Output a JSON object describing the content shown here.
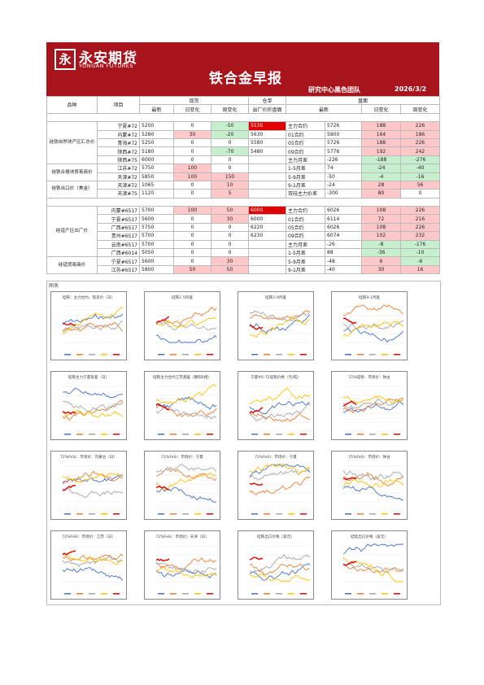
{
  "brand": {
    "logo_glyph": "永",
    "name_cn": "永安期货",
    "name_en": "YONGAN FUTURES"
  },
  "report": {
    "title": "铁合金早报",
    "team": "研究中心黑色团队",
    "date": "2026/3/2"
  },
  "table": {
    "header_row1": {
      "variety": "品种",
      "item": "项目",
      "spot": "现货",
      "receipt": "仓单",
      "futures": "盘面"
    },
    "header_row2": {
      "latest": "最新",
      "daily": "日变化",
      "weekly": "周变化",
      "receipt_sub": "出厂价折盘面",
      "f_latest": "最新",
      "f_daily": "日变化",
      "f_weekly": "周变化"
    },
    "rows": [
      {
        "cat": "硅铁自然块产区汇总价",
        "item": "宁夏#72",
        "latest": "5200",
        "daily": "0",
        "weekly": "-50",
        "receipt": "5530",
        "contract": "主力合约",
        "f_latest": "5726",
        "f_daily": "188",
        "f_weekly": "226"
      },
      {
        "cat": "",
        "item": "内蒙#72",
        "latest": "5280",
        "daily": "30",
        "weekly": "-20",
        "receipt": "5630",
        "contract": "01合约",
        "f_latest": "5800",
        "f_daily": "164",
        "f_weekly": "186"
      },
      {
        "cat": "",
        "item": "青海#72",
        "latest": "5250",
        "daily": "0",
        "weekly": "0",
        "receipt": "5580",
        "contract": "05合约",
        "f_latest": "5726",
        "f_daily": "188",
        "f_weekly": "226"
      },
      {
        "cat": "",
        "item": "陕西#72",
        "latest": "5180",
        "daily": "0",
        "weekly": "-70",
        "receipt": "5480",
        "contract": "09合约",
        "f_latest": "5776",
        "f_daily": "192",
        "f_weekly": "242"
      },
      {
        "cat": "",
        "item": "陕西#75",
        "latest": "6000",
        "daily": "0",
        "weekly": "0",
        "receipt": "",
        "contract": "主力月差",
        "f_latest": "-226",
        "f_daily": "-188",
        "f_weekly": "-276"
      },
      {
        "cat": "硅铁合格块贸易商价",
        "item": "江苏#72",
        "latest": "5750",
        "daily": "100",
        "weekly": "0",
        "receipt": "",
        "contract": "1-5月差",
        "f_latest": "74",
        "f_daily": "-24",
        "f_weekly": "-40"
      },
      {
        "cat": "",
        "item": "天津#72",
        "latest": "5850",
        "daily": "100",
        "weekly": "150",
        "receipt": "",
        "contract": "5-9月差",
        "f_latest": "-50",
        "f_daily": "-4",
        "f_weekly": "-16"
      },
      {
        "cat": "硅铁出口价（美金）",
        "item": "天津#72",
        "latest": "1065",
        "daily": "0",
        "weekly": "10",
        "receipt": "",
        "contract": "9-1月差",
        "f_latest": "-24",
        "f_daily": "28",
        "f_weekly": "56"
      },
      {
        "cat": "",
        "item": "天津#75",
        "latest": "1120",
        "daily": "0",
        "weekly": "5",
        "receipt": "",
        "contract": "双硅主力价差",
        "f_latest": "-300",
        "f_daily": "80",
        "f_weekly": "0"
      },
      {
        "cat": "硅锰产区出厂价",
        "item": "内蒙#6517",
        "latest": "5700",
        "daily": "100",
        "weekly": "50",
        "receipt": "6000",
        "contract": "主力合约",
        "f_latest": "6026",
        "f_daily": "108",
        "f_weekly": "226"
      },
      {
        "cat": "",
        "item": "宁夏#6517",
        "latest": "5600",
        "daily": "0",
        "weekly": "30",
        "receipt": "6000",
        "contract": "01合约",
        "f_latest": "6114",
        "f_daily": "72",
        "f_weekly": "216"
      },
      {
        "cat": "",
        "item": "广西#6517",
        "latest": "5750",
        "daily": "0",
        "weekly": "0",
        "receipt": "6220",
        "contract": "05合约",
        "f_latest": "6026",
        "f_daily": "108",
        "f_weekly": "226"
      },
      {
        "cat": "",
        "item": "贵州#6517",
        "latest": "5700",
        "daily": "0",
        "weekly": "0",
        "receipt": "6230",
        "contract": "09合约",
        "f_latest": "6074",
        "f_daily": "102",
        "f_weekly": "232"
      },
      {
        "cat": "",
        "item": "云南#6517",
        "latest": "5700",
        "daily": "0",
        "weekly": "0",
        "receipt": "",
        "contract": "主力月差",
        "f_latest": "-26",
        "f_daily": "-8",
        "f_weekly": "-176"
      },
      {
        "cat": "",
        "item": "广西#6014",
        "latest": "5050",
        "daily": "0",
        "weekly": "0",
        "receipt": "",
        "contract": "1-5月差",
        "f_latest": "88",
        "f_daily": "-36",
        "f_weekly": "-10"
      },
      {
        "cat": "硅锰贸易商价",
        "item": "宁夏#6517",
        "latest": "5600",
        "daily": "0",
        "weekly": "30",
        "receipt": "",
        "contract": "5-9月差",
        "f_latest": "-48",
        "f_daily": "6",
        "f_weekly": "-6"
      },
      {
        "cat": "",
        "item": "江苏#6517",
        "latest": "5800",
        "daily": "50",
        "weekly": "50",
        "receipt": "",
        "contract": "9-1月差",
        "f_latest": "-40",
        "f_daily": "30",
        "f_weekly": "16"
      }
    ]
  },
  "charts_label": "图表",
  "charts": [
    {
      "title": "硅铁：主力合约、现货价（日）"
    },
    {
      "title": "硅铁1-5月差"
    },
    {
      "title": "硅铁5-9月差"
    },
    {
      "title": "硅铁9-1月差"
    },
    {
      "title": "硅铁主力宁夏基差（日）"
    },
    {
      "title": "硅铁主力合约江苏基差（朝阳0相）"
    },
    {
      "title": "宁夏#6-72硅铁价格（元/吨）"
    },
    {
      "title": "72%硅铁：市场价：陕古"
    },
    {
      "title": "72%FeSi：市场价：内蒙古（日）"
    },
    {
      "title": "72%FeSi：市场价：宁夏"
    },
    {
      "title": "72%FeSi：市场价：宁夏"
    },
    {
      "title": "75%FeSi：市场价：陕古"
    },
    {
      "title": "72%FeSi：市场价：江苏（日）"
    },
    {
      "title": "72%FeSi：市场价：天津（日）"
    },
    {
      "title": "硅铁出口价格（美元）"
    },
    {
      "title": "硅锰出口价格（美元）"
    }
  ],
  "colors": {
    "brand_red": "#a8141c",
    "cell_red": "#ffc7c7",
    "cell_bright_red": "#e00000",
    "cell_green": "#c6efce",
    "series": [
      "#4472c4",
      "#ed7d31",
      "#a5a5a5",
      "#ffc000",
      "#e00000"
    ]
  }
}
